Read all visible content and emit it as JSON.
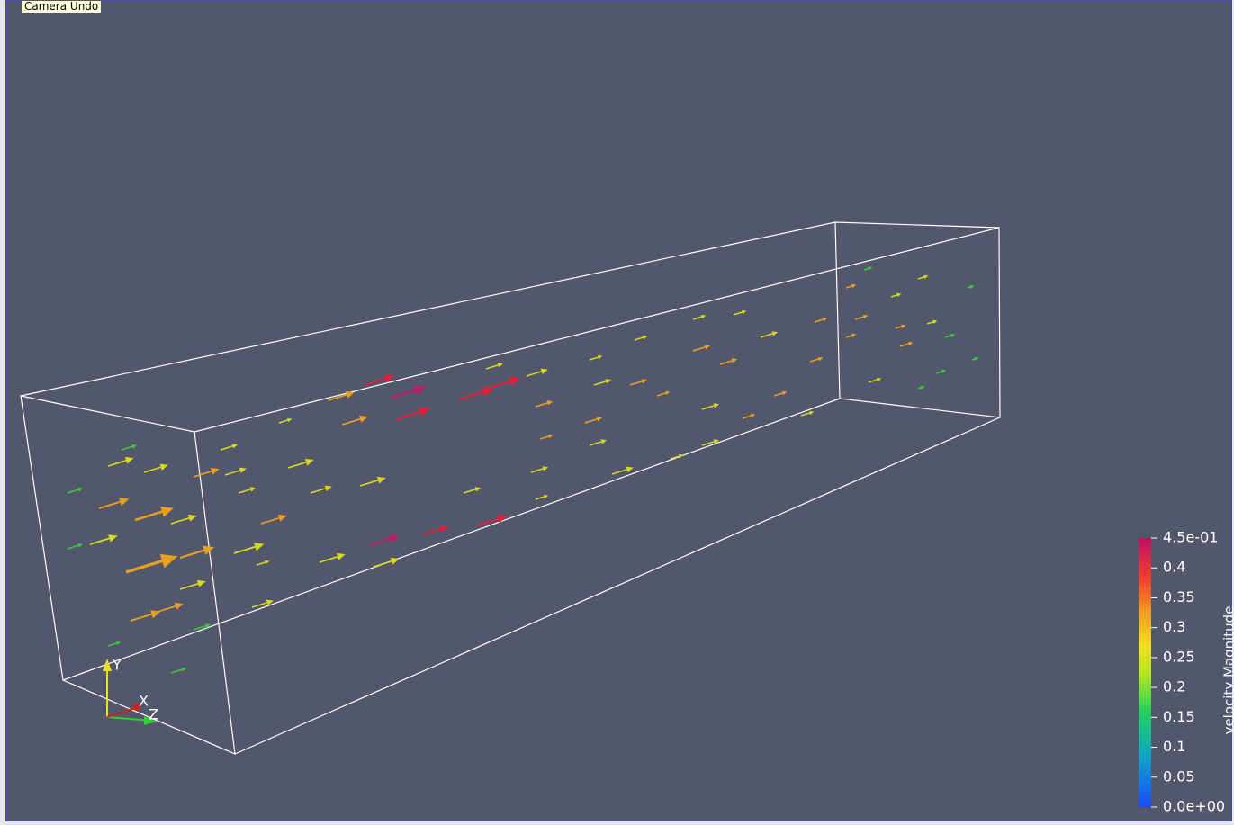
{
  "tooltip": "Camera Undo",
  "orientation_axes": {
    "x": "X",
    "y": "Y",
    "z": "Z"
  },
  "color_legend": {
    "title": "velocity Magnitude",
    "ticks": [
      {
        "value": 0.45,
        "label": "4.5e-01"
      },
      0.4,
      0.35,
      0.3,
      0.25,
      0.2,
      0.15,
      0.1,
      0.05,
      {
        "value": 0,
        "label": "0.0e+00"
      }
    ]
  }
}
